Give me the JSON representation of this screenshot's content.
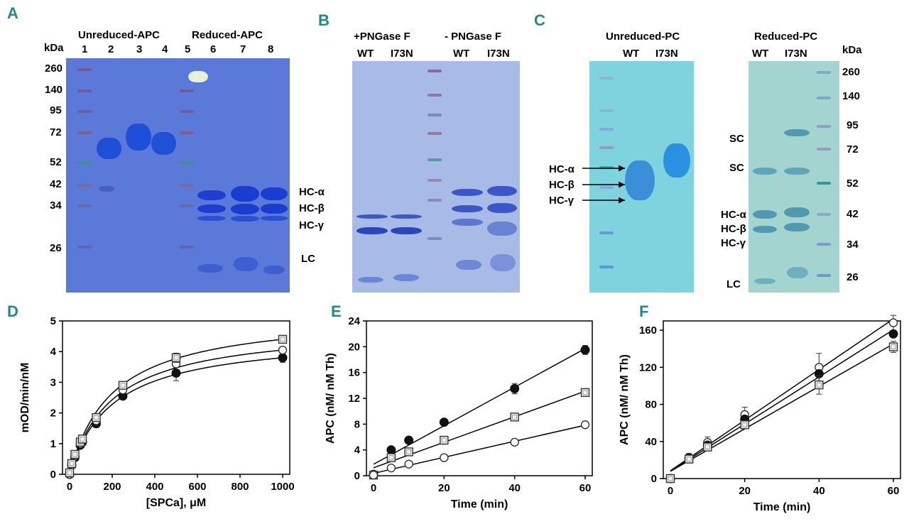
{
  "panels": {
    "A": {
      "letter": "A",
      "kda": "kDa",
      "group1": "Unreduced-APC",
      "group2": "Reduced-APC",
      "lanes": [
        "1",
        "2",
        "3",
        "4",
        "5",
        "6",
        "7",
        "8"
      ],
      "mw": [
        "260",
        "140",
        "95",
        "72",
        "52",
        "42",
        "34",
        "26"
      ],
      "bands": [
        "HC-α",
        "HC-β",
        "HC-γ",
        "LC"
      ]
    },
    "B": {
      "letter": "B",
      "group1": "+PNGase F",
      "group2": "- PNGase F",
      "lanes": [
        "WT",
        "I73N",
        "WT",
        "I73N"
      ]
    },
    "C": {
      "letter": "C",
      "group1": "Unreduced-PC",
      "group2": "Reduced-PC",
      "lanes1": [
        "WT",
        "I73N"
      ],
      "lanes2": [
        "WT",
        "I73N"
      ],
      "kda": "kDa",
      "mw": [
        "260",
        "140",
        "95",
        "72",
        "52",
        "42",
        "34",
        "26"
      ],
      "arrows": [
        "HC-α",
        "HC-β",
        "HC-γ"
      ],
      "right_labels": [
        "SC",
        "SC",
        "HC-α",
        "HC-β",
        "HC-γ",
        "LC"
      ]
    }
  },
  "chart_data": [
    {
      "id": "D",
      "letter": "D",
      "type": "scatter",
      "title": "",
      "xlabel": "[SPCa], μM",
      "ylabel": "mOD/min/nM",
      "xlim": [
        0,
        1000
      ],
      "ylim": [
        0,
        5
      ],
      "xticks": [
        "0",
        "200",
        "400",
        "600",
        "800",
        "1000"
      ],
      "yticks": [
        "0",
        "1",
        "2",
        "3",
        "4",
        "5"
      ],
      "series": [
        {
          "name": "filled-circle",
          "marker": "filled-circle",
          "x": [
            0,
            10,
            25,
            50,
            60,
            125,
            250,
            500,
            1000
          ],
          "y": [
            0,
            0.3,
            0.55,
            0.95,
            1.05,
            1.65,
            2.55,
            3.3,
            3.8
          ],
          "err": [
            0,
            0,
            0,
            0,
            0,
            0,
            0,
            0.25,
            0.15
          ]
        },
        {
          "name": "open-circle",
          "marker": "open-circle",
          "x": [
            0,
            10,
            25,
            50,
            60,
            125,
            250,
            500,
            1000
          ],
          "y": [
            0,
            0.3,
            0.6,
            1.0,
            1.1,
            1.75,
            2.75,
            3.6,
            4.05
          ],
          "err": [
            0,
            0,
            0,
            0,
            0,
            0,
            0,
            0.1,
            0.1
          ]
        },
        {
          "name": "open-square",
          "marker": "open-square",
          "x": [
            0,
            10,
            25,
            50,
            60,
            125,
            250,
            500,
            1000
          ],
          "y": [
            0.05,
            0.35,
            0.65,
            1.05,
            1.15,
            1.85,
            2.9,
            3.8,
            4.4
          ],
          "err": [
            0,
            0,
            0,
            0,
            0,
            0,
            0,
            0.15,
            0.1
          ]
        }
      ]
    },
    {
      "id": "E",
      "letter": "E",
      "type": "scatter",
      "title": "",
      "xlabel": "Time (min)",
      "ylabel": "APC (nM/ nM Th)",
      "xlim": [
        0,
        60
      ],
      "ylim": [
        0,
        24
      ],
      "xticks": [
        "0",
        "20",
        "40",
        "60"
      ],
      "yticks": [
        "0",
        "4",
        "8",
        "12",
        "16",
        "20",
        "24"
      ],
      "series": [
        {
          "name": "filled-circle",
          "marker": "filled-circle",
          "x": [
            0,
            5,
            10,
            20,
            40,
            60
          ],
          "y": [
            0.2,
            4.0,
            5.5,
            8.3,
            13.5,
            19.5
          ],
          "err": [
            0,
            0,
            0,
            0,
            0.8,
            0.7
          ]
        },
        {
          "name": "open-square",
          "marker": "open-square",
          "x": [
            0,
            5,
            10,
            20,
            40,
            60
          ],
          "y": [
            0.1,
            2.8,
            3.7,
            5.5,
            9.1,
            12.9
          ],
          "err": [
            0,
            0,
            0,
            0,
            0,
            0
          ]
        },
        {
          "name": "open-circle",
          "marker": "open-circle",
          "x": [
            0,
            5,
            10,
            20,
            40,
            60
          ],
          "y": [
            0.1,
            1.2,
            1.8,
            2.8,
            5.2,
            7.9
          ],
          "err": [
            0,
            0,
            0,
            0,
            0,
            0
          ]
        }
      ]
    },
    {
      "id": "F",
      "letter": "F",
      "type": "scatter",
      "title": "",
      "xlabel": "Time (min)",
      "ylabel": "APC (nM/ nM Th)",
      "xlim": [
        0,
        60
      ],
      "ylim": [
        0,
        170
      ],
      "xticks": [
        "0",
        "20",
        "40",
        "60"
      ],
      "yticks": [
        "0",
        "40",
        "80",
        "120",
        "160"
      ],
      "series": [
        {
          "name": "open-circle",
          "marker": "open-circle",
          "x": [
            0,
            5,
            10,
            20,
            40,
            60
          ],
          "y": [
            0,
            23,
            39,
            69,
            120,
            168
          ],
          "err": [
            0,
            4,
            6,
            8,
            15,
            8
          ]
        },
        {
          "name": "filled-circle",
          "marker": "filled-circle",
          "x": [
            0,
            5,
            10,
            20,
            40,
            60
          ],
          "y": [
            0,
            22,
            36,
            64,
            113,
            156
          ],
          "err": [
            0,
            0,
            0,
            0,
            0,
            0
          ]
        },
        {
          "name": "open-square",
          "marker": "open-square",
          "x": [
            0,
            5,
            10,
            20,
            40,
            60
          ],
          "y": [
            0,
            21,
            34,
            58,
            101,
            142
          ],
          "err": [
            0,
            0,
            0,
            0,
            10,
            6
          ]
        }
      ]
    }
  ]
}
